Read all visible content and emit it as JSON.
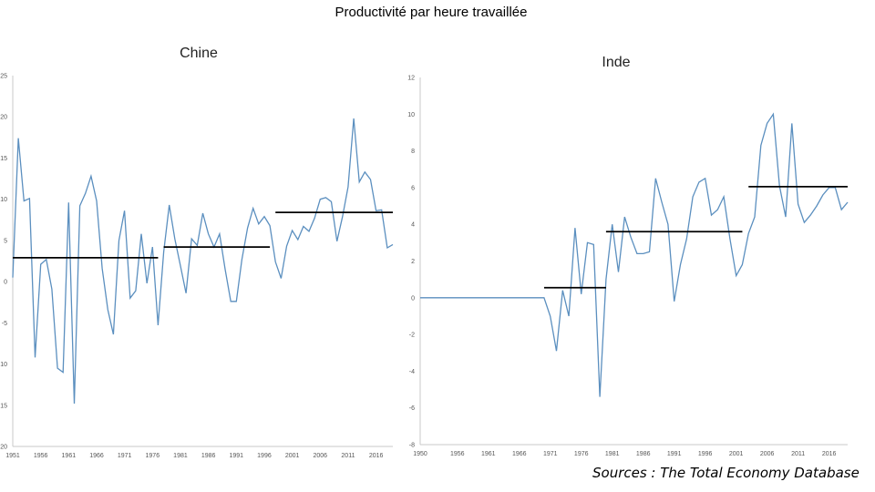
{
  "title": "Productivité par heure travaillée",
  "source": "Sources : The Total Economy Database",
  "chart_data": [
    {
      "type": "line",
      "title": "Chine",
      "xlabel": "",
      "ylabel": "",
      "ylim": [
        -20,
        25
      ],
      "xlim": [
        1951,
        2019
      ],
      "yticks": [
        25,
        20,
        15,
        10,
        5,
        0,
        -5,
        -10,
        -15,
        -20
      ],
      "xticks": [
        1951,
        1956,
        1961,
        1966,
        1971,
        1976,
        1981,
        1986,
        1991,
        1996,
        2001,
        2006,
        2011,
        2016
      ],
      "color": "#5b8fbf",
      "x": [
        1951,
        1952,
        1953,
        1954,
        1955,
        1956,
        1957,
        1958,
        1959,
        1960,
        1961,
        1962,
        1963,
        1964,
        1965,
        1966,
        1967,
        1968,
        1969,
        1970,
        1971,
        1972,
        1973,
        1974,
        1975,
        1976,
        1977,
        1978,
        1979,
        1980,
        1981,
        1982,
        1983,
        1984,
        1985,
        1986,
        1987,
        1988,
        1989,
        1990,
        1991,
        1992,
        1993,
        1994,
        1995,
        1996,
        1997,
        1998,
        1999,
        2000,
        2001,
        2002,
        2003,
        2004,
        2005,
        2006,
        2007,
        2008,
        2009,
        2010,
        2011,
        2012,
        2013,
        2014,
        2015,
        2016,
        2017,
        2018,
        2019
      ],
      "y": [
        0.5,
        17.4,
        9.8,
        10.1,
        -9.2,
        2.1,
        2.7,
        -0.9,
        -10.5,
        -11.0,
        9.6,
        -14.8,
        9.2,
        10.7,
        12.8,
        9.8,
        1.6,
        -3.4,
        -6.4,
        5.0,
        8.6,
        -2.0,
        -1.1,
        5.8,
        -0.2,
        4.2,
        -5.3,
        3.6,
        9.3,
        5.2,
        1.9,
        -1.4,
        5.2,
        4.4,
        8.3,
        5.8,
        4.2,
        5.8,
        1.5,
        -2.4,
        -2.4,
        2.7,
        6.5,
        8.9,
        7.0,
        7.9,
        6.8,
        2.4,
        0.4,
        4.3,
        6.2,
        5.1,
        6.7,
        6.1,
        7.7,
        10.0,
        10.2,
        9.7,
        4.9,
        7.9,
        11.5,
        19.8,
        12.1,
        13.3,
        12.4,
        8.6,
        8.7,
        4.1,
        4.5
      ],
      "averages": [
        {
          "from": 1951,
          "to": 1977,
          "value": 2.9
        },
        {
          "from": 1978,
          "to": 1997,
          "value": 4.2
        },
        {
          "from": 1998,
          "to": 2019,
          "value": 8.4
        }
      ]
    },
    {
      "type": "line",
      "title": "Inde",
      "xlabel": "",
      "ylabel": "",
      "ylim": [
        -8,
        12
      ],
      "xlim": [
        1950,
        2019
      ],
      "yticks": [
        12,
        10,
        8,
        6,
        4,
        2,
        0,
        -2,
        -4,
        -6,
        -8
      ],
      "xticks": [
        1950,
        1956,
        1961,
        1966,
        1971,
        1976,
        1981,
        1986,
        1991,
        1996,
        2001,
        2006,
        2011,
        2016
      ],
      "color": "#5b8fbf",
      "x": [
        1950,
        1951,
        1952,
        1953,
        1954,
        1955,
        1956,
        1957,
        1958,
        1959,
        1960,
        1961,
        1962,
        1963,
        1964,
        1965,
        1966,
        1967,
        1968,
        1969,
        1970,
        1971,
        1972,
        1973,
        1974,
        1975,
        1976,
        1977,
        1978,
        1979,
        1980,
        1981,
        1982,
        1983,
        1984,
        1985,
        1986,
        1987,
        1988,
        1989,
        1990,
        1991,
        1992,
        1993,
        1994,
        1995,
        1996,
        1997,
        1998,
        1999,
        2000,
        2001,
        2002,
        2003,
        2004,
        2005,
        2006,
        2007,
        2008,
        2009,
        2010,
        2011,
        2012,
        2013,
        2014,
        2015,
        2016,
        2017,
        2018,
        2019
      ],
      "y": [
        0,
        0,
        0,
        0,
        0,
        0,
        0,
        0,
        0,
        0,
        0,
        0,
        0,
        0,
        0,
        0,
        0,
        0,
        0,
        0,
        0,
        -1.0,
        -2.9,
        0.4,
        -1.0,
        3.8,
        0.2,
        3.0,
        2.9,
        -5.4,
        1.0,
        4.0,
        1.4,
        4.4,
        3.3,
        2.4,
        2.4,
        2.5,
        6.5,
        5.2,
        4.0,
        -0.2,
        1.8,
        3.2,
        5.5,
        6.3,
        6.5,
        4.5,
        4.8,
        5.5,
        3.2,
        1.2,
        1.8,
        3.5,
        4.4,
        8.3,
        9.5,
        10.0,
        6.1,
        4.4,
        9.5,
        5.1,
        4.1,
        4.5,
        5.0,
        5.6,
        6.0,
        6.0,
        4.8,
        5.2
      ],
      "averages": [
        {
          "from": 1970,
          "to": 1980,
          "value": 0.55
        },
        {
          "from": 1980,
          "to": 2002,
          "value": 3.6
        },
        {
          "from": 2003,
          "to": 2019,
          "value": 6.05
        }
      ]
    }
  ]
}
